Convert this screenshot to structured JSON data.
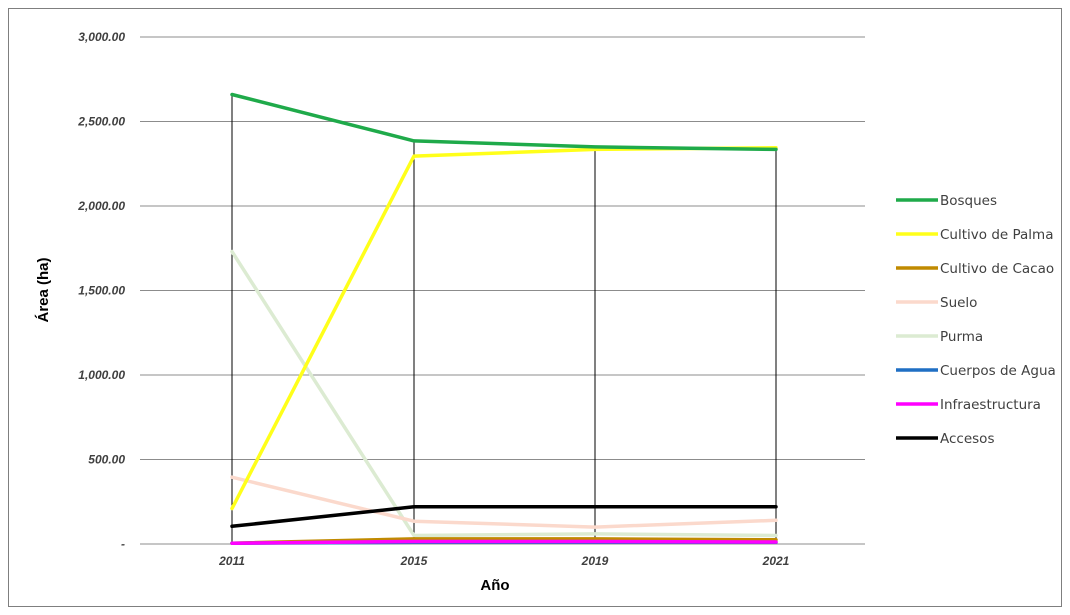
{
  "chart_data": {
    "type": "line",
    "title": "",
    "xlabel": "Año",
    "ylabel": "Área (ha)",
    "ylim": [
      0,
      3000
    ],
    "y_ticks": [
      {
        "value": 3000,
        "label": "3,000.00"
      },
      {
        "value": 2500,
        "label": "2,500.00"
      },
      {
        "value": 2000,
        "label": "2,000.00"
      },
      {
        "value": 1500,
        "label": "1,500.00"
      },
      {
        "value": 1000,
        "label": "1,000.00"
      },
      {
        "value": 500,
        "label": "500.00"
      },
      {
        "value": 0,
        "label": "-"
      }
    ],
    "categories": [
      "2011",
      "2015",
      "2019",
      "2021"
    ],
    "grid": true,
    "legend_position": "right",
    "series": [
      {
        "name": "Bosques",
        "color": "#1faa4a",
        "values": [
          2660,
          2385,
          2350,
          2335
        ]
      },
      {
        "name": "Cultivo de Palma",
        "color": "#ffff1a",
        "values": [
          210,
          2295,
          2335,
          2345
        ]
      },
      {
        "name": "Cultivo de Cacao",
        "color": "#c08a00",
        "values": [
          5,
          30,
          30,
          25
        ]
      },
      {
        "name": "Suelo",
        "color": "#fbd9cc",
        "values": [
          395,
          135,
          100,
          140
        ]
      },
      {
        "name": "Purma",
        "color": "#dcebd2",
        "values": [
          1730,
          50,
          60,
          50
        ]
      },
      {
        "name": "Cuerpos de Agua",
        "color": "#1f6fc4",
        "values": [
          5,
          10,
          10,
          10
        ]
      },
      {
        "name": "Infraestructura",
        "color": "#ff00ff",
        "values": [
          5,
          15,
          15,
          12
        ]
      },
      {
        "name": "Accesos",
        "color": "#000000",
        "values": [
          105,
          220,
          220,
          220
        ]
      }
    ]
  }
}
